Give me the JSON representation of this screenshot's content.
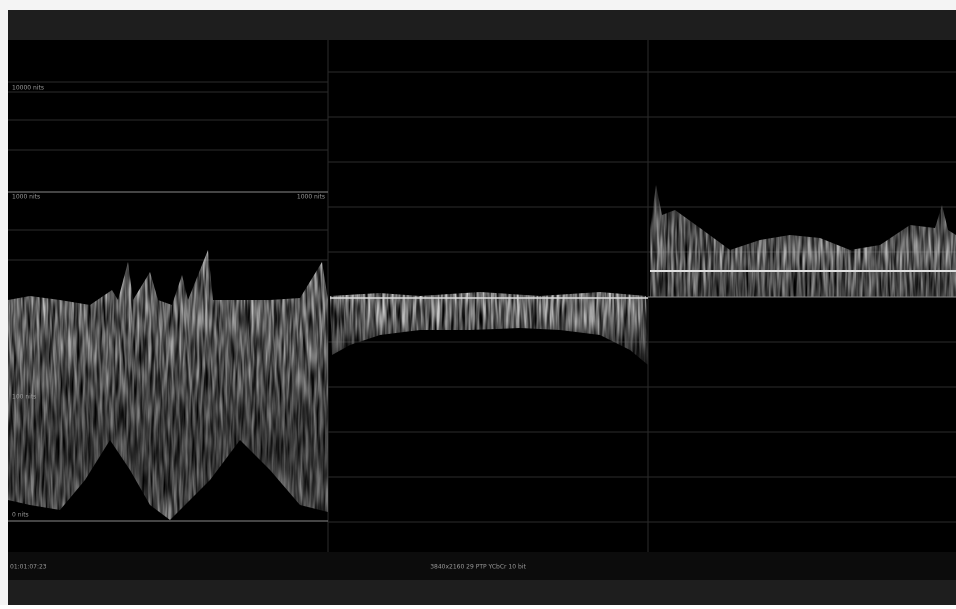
{
  "scope": {
    "left_labels": [
      "10000 nits",
      "1000 nits",
      "100 nits",
      "0 nits"
    ],
    "left_right_label": "1000 nits"
  },
  "status_bar": {
    "timecode": "01:01:07:23",
    "format": "3840x2160 29 PTP YCbCr 10 bit"
  }
}
